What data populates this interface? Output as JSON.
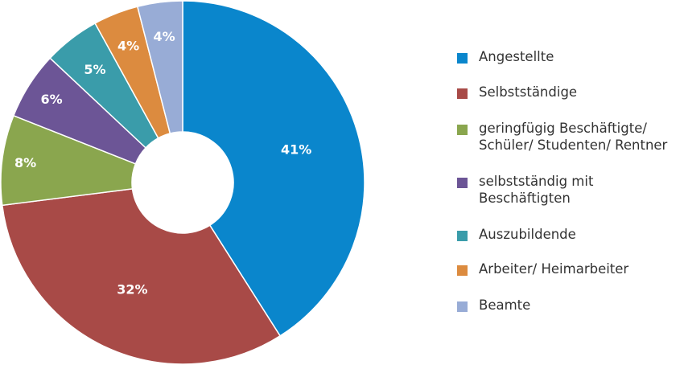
{
  "chart_data": {
    "type": "pie",
    "donut": true,
    "labels": [
      "Angestellte",
      "Selbstständige",
      "geringfügig Beschäftigte/\nSchüler/ Studenten/ Rentner",
      "selbstständig mit\nBeschäftigten",
      "Auszubildende",
      "Arbeiter/ Heimarbeiter",
      "Beamte"
    ],
    "values": [
      41,
      32,
      8,
      6,
      5,
      4,
      4
    ],
    "value_labels": [
      "41%",
      "32%",
      "8%",
      "6%",
      "5%",
      "4%",
      "4%"
    ],
    "colors": [
      "#0a86cc",
      "#a84a47",
      "#8aa64e",
      "#6c5596",
      "#3a9caa",
      "#dc8b3f",
      "#98acd6"
    ],
    "legend_position": "right",
    "start_angle_deg": 0,
    "direction": "clockwise"
  }
}
